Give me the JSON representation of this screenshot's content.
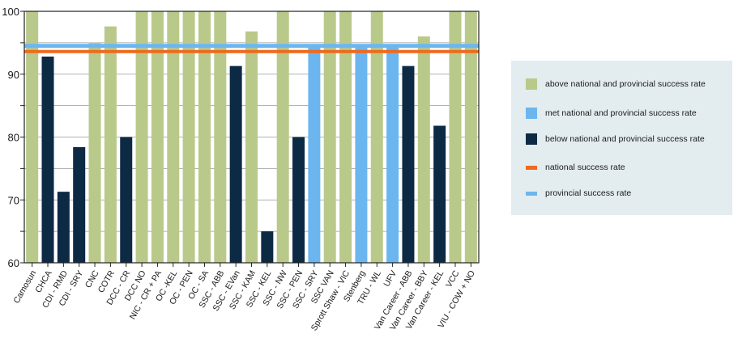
{
  "chart_data": {
    "type": "bar",
    "categories": [
      "Camosun",
      "CHCA",
      "CDI - RMD",
      "CDI - SRY",
      "CNC",
      "COTR",
      "DCC - CR",
      "DCC NO",
      "NIC - CR + PA",
      "OC -KEL",
      "OC - PEN",
      "OC - SA",
      "SSC - ABB",
      "SSC - EVan",
      "SSC - KAM",
      "SSC - KEL",
      "SSC - NW",
      "SSC - PEN",
      "SSC - SRY",
      "SSC VAN",
      "Sprott Shaw - VIC",
      "Stenberg",
      "TRU - WL",
      "UFV",
      "Van Career - ABB",
      "Van Career - BBY",
      "Van Career - KEL",
      "VCC",
      "VIU - COW + NO"
    ],
    "values": [
      100,
      92.8,
      71.3,
      78.4,
      95,
      97.6,
      80,
      100,
      100,
      100,
      100,
      100,
      100,
      91.3,
      96.8,
      65,
      100,
      80,
      94.5,
      100,
      100,
      94.5,
      100,
      94.5,
      91.3,
      96,
      81.8,
      100,
      100
    ],
    "status": [
      "above",
      "below",
      "below",
      "below",
      "above",
      "above",
      "below",
      "above",
      "above",
      "above",
      "above",
      "above",
      "above",
      "below",
      "above",
      "below",
      "above",
      "below",
      "met",
      "above",
      "above",
      "met",
      "above",
      "met",
      "below",
      "above",
      "below",
      "above",
      "above"
    ],
    "ylim": [
      60,
      100
    ],
    "yticks": [
      60,
      70,
      80,
      90,
      100
    ],
    "reference_lines": {
      "national": 93.6,
      "provincial": 94.5
    },
    "colors": {
      "above": "#b9c98a",
      "met": "#6cb6f0",
      "below": "#0d2a45",
      "national": "#ef6a1c",
      "provincial": "#6cb6f0"
    },
    "grid": true,
    "legend_position": "right"
  },
  "legend": {
    "above": "above national and provincial success rate",
    "met": "met national and provincial success rate",
    "below": "below national and provincial success rate",
    "national": "national success rate",
    "provincial": "provincial success rate"
  }
}
